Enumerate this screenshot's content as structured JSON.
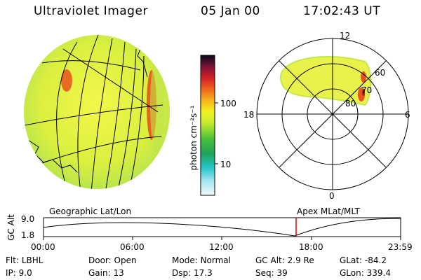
{
  "header": {
    "instrument": "Ultraviolet Imager",
    "date": "05 Jan 00",
    "time": "17:02:43 UT"
  },
  "colorbar": {
    "unit_label": "photon cm⁻²s⁻¹",
    "ticks": [
      "100",
      "10"
    ],
    "scale": "log"
  },
  "polar_plot": {
    "mlt_labels": [
      "12",
      "18",
      "6",
      "0"
    ],
    "lat_labels": [
      "60",
      "70",
      "80"
    ]
  },
  "timeline": {
    "y_label": "GC Alt",
    "y_ticks": [
      "9.0",
      "1.8"
    ],
    "left_caption": "Geographic Lat/Lon",
    "right_caption": "Apex MLat/MLT",
    "x_ticks": [
      "00:00",
      "06:00",
      "12:00",
      "18:00",
      "23:59"
    ],
    "current_time_marker": "17:02:43"
  },
  "status": {
    "row1": [
      {
        "key": "Flt:",
        "value": "LBHL"
      },
      {
        "key": "Door:",
        "value": "Open"
      },
      {
        "key": "Mode:",
        "value": "Normal"
      },
      {
        "key": "GC Alt:",
        "value": "2.9 Re"
      },
      {
        "key": "GLat:",
        "value": "-84.2"
      }
    ],
    "row2": [
      {
        "key": "IP:",
        "value": "9.0"
      },
      {
        "key": "Gain:",
        "value": "13"
      },
      {
        "key": "Dsp:",
        "value": "17.3"
      },
      {
        "key": "Seq:",
        "value": "39"
      },
      {
        "key": "GLon:",
        "value": "339.4"
      }
    ]
  },
  "colors": {
    "disk_fill": "#e8f24a",
    "aurora_hot": "#e8541c",
    "marker": "#e00000"
  }
}
